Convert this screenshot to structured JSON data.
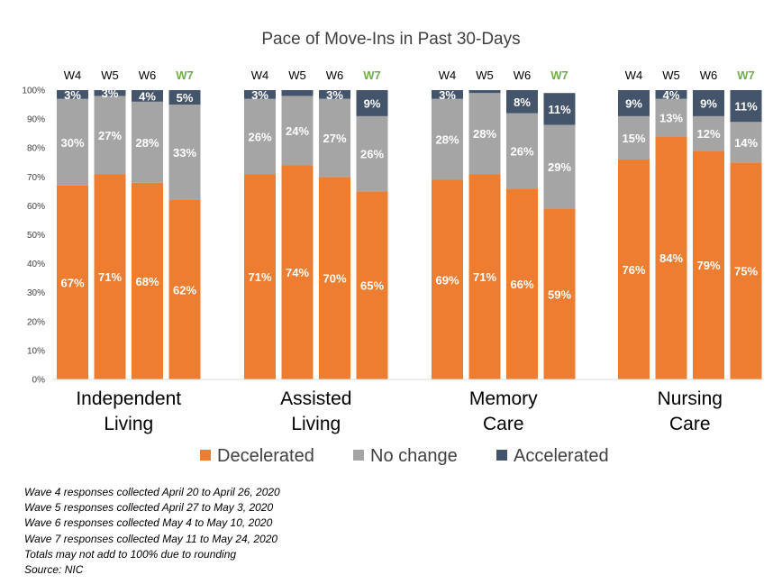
{
  "chart_data": {
    "type": "bar",
    "stacked": true,
    "title": "Pace of Move-Ins in Past 30-Days",
    "groups": [
      {
        "label": "Independent Living",
        "label_lines": [
          "Independent",
          "Living"
        ]
      },
      {
        "label": "Assisted Living",
        "label_lines": [
          "Assisted",
          "Living"
        ]
      },
      {
        "label": "Memory Care",
        "label_lines": [
          "Memory",
          "Care"
        ]
      },
      {
        "label": "Nursing Care",
        "label_lines": [
          "Nursing",
          "Care"
        ]
      }
    ],
    "waves": [
      "W4",
      "W5",
      "W6",
      "W7"
    ],
    "highlight_wave": "W7",
    "series": [
      {
        "name": "Decelerated",
        "color": "#ed7d31",
        "values": [
          [
            67,
            71,
            68,
            62
          ],
          [
            71,
            74,
            70,
            65
          ],
          [
            69,
            71,
            66,
            59
          ],
          [
            76,
            84,
            79,
            75
          ]
        ]
      },
      {
        "name": "No change",
        "color": "#a5a5a5",
        "values": [
          [
            30,
            27,
            28,
            33
          ],
          [
            26,
            24,
            27,
            26
          ],
          [
            28,
            28,
            26,
            29
          ],
          [
            15,
            13,
            12,
            14
          ]
        ]
      },
      {
        "name": "Accelerated",
        "color": "#44546a",
        "values": [
          [
            3,
            3,
            4,
            5
          ],
          [
            3,
            2,
            3,
            9
          ],
          [
            3,
            1,
            8,
            11
          ],
          [
            9,
            4,
            9,
            11
          ]
        ]
      }
    ],
    "data_labels": [
      [
        [
          "67%",
          "71%",
          "68%",
          "62%"
        ],
        [
          "71%",
          "74%",
          "70%",
          "65%"
        ],
        [
          "69%",
          "71%",
          "66%",
          "59%"
        ],
        [
          "76%",
          "84%",
          "79%",
          "75%"
        ]
      ],
      [
        [
          "30%",
          "27%",
          "28%",
          "33%"
        ],
        [
          "26%",
          "24%",
          "27%",
          "26%"
        ],
        [
          "28%",
          "28%",
          "26%",
          "29%"
        ],
        [
          "15%",
          "13%",
          "12%",
          "14%"
        ]
      ],
      [
        [
          "3%",
          "3%",
          "4%",
          "5%"
        ],
        [
          "3%",
          "",
          "3%",
          "9%"
        ],
        [
          "3%",
          "",
          "8%",
          "11%"
        ],
        [
          "9%",
          "4%",
          "9%",
          "11%"
        ]
      ]
    ],
    "y_ticks": [
      "0%",
      "10%",
      "20%",
      "30%",
      "40%",
      "50%",
      "60%",
      "70%",
      "80%",
      "90%",
      "100%"
    ],
    "ylim": [
      0,
      100
    ],
    "grid": false,
    "legend_position": "bottom"
  },
  "notes": [
    "Wave 4 responses collected April 20 to April 26, 2020",
    "Wave 5 responses collected April 27 to May 3, 2020",
    "Wave 6 responses collected May 4 to May 10, 2020",
    "Wave 7 responses collected May 11 to May 24, 2020",
    "Totals may not add to 100% due to rounding",
    "Source: NIC"
  ]
}
